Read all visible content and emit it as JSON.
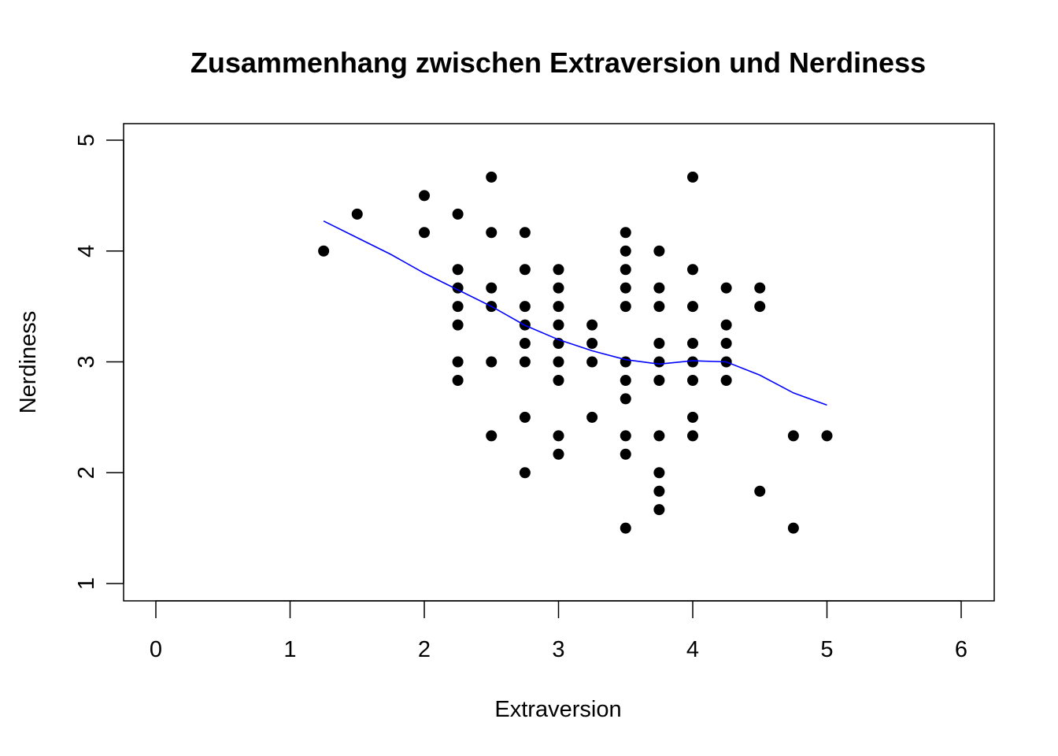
{
  "chart_data": {
    "type": "scatter",
    "title": "Zusammenhang zwischen Extraversion und Nerdiness",
    "xlabel": "Extraversion",
    "ylabel": "Nerdiness",
    "xlim": [
      0,
      6
    ],
    "ylim": [
      1,
      5
    ],
    "x_ticks": [
      0,
      1,
      2,
      3,
      4,
      5,
      6
    ],
    "x_tick_labels": [
      "0",
      "1",
      "2",
      "3",
      "4",
      "5",
      "6"
    ],
    "y_ticks": [
      1,
      2,
      3,
      4,
      5
    ],
    "y_tick_labels": [
      "1",
      "2",
      "3",
      "4",
      "5"
    ],
    "grid": false,
    "series": [
      {
        "name": "points",
        "color": "#000000",
        "points": [
          [
            1.25,
            4.0
          ],
          [
            1.5,
            4.333
          ],
          [
            2.0,
            4.5
          ],
          [
            2.0,
            4.167
          ],
          [
            2.25,
            4.333
          ],
          [
            2.25,
            3.833
          ],
          [
            2.25,
            3.667
          ],
          [
            2.25,
            3.5
          ],
          [
            2.25,
            3.333
          ],
          [
            2.25,
            3.0
          ],
          [
            2.25,
            2.833
          ],
          [
            2.5,
            4.667
          ],
          [
            2.5,
            4.167
          ],
          [
            2.5,
            3.667
          ],
          [
            2.5,
            3.5
          ],
          [
            2.5,
            3.0
          ],
          [
            2.5,
            2.333
          ],
          [
            2.75,
            4.167
          ],
          [
            2.75,
            3.833
          ],
          [
            2.75,
            3.5
          ],
          [
            2.75,
            3.333
          ],
          [
            2.75,
            3.167
          ],
          [
            2.75,
            3.0
          ],
          [
            2.75,
            2.5
          ],
          [
            2.75,
            2.0
          ],
          [
            3.0,
            3.833
          ],
          [
            3.0,
            3.667
          ],
          [
            3.0,
            3.5
          ],
          [
            3.0,
            3.333
          ],
          [
            3.0,
            3.167
          ],
          [
            3.0,
            3.0
          ],
          [
            3.0,
            2.833
          ],
          [
            3.0,
            2.333
          ],
          [
            3.0,
            2.167
          ],
          [
            3.25,
            3.333
          ],
          [
            3.25,
            3.167
          ],
          [
            3.25,
            3.0
          ],
          [
            3.25,
            2.5
          ],
          [
            3.5,
            4.167
          ],
          [
            3.5,
            4.0
          ],
          [
            3.5,
            3.833
          ],
          [
            3.5,
            3.667
          ],
          [
            3.5,
            3.5
          ],
          [
            3.5,
            3.0
          ],
          [
            3.5,
            2.833
          ],
          [
            3.5,
            2.667
          ],
          [
            3.5,
            2.333
          ],
          [
            3.5,
            2.167
          ],
          [
            3.5,
            1.5
          ],
          [
            3.75,
            4.0
          ],
          [
            3.75,
            3.667
          ],
          [
            3.75,
            3.5
          ],
          [
            3.75,
            3.167
          ],
          [
            3.75,
            3.0
          ],
          [
            3.75,
            2.833
          ],
          [
            3.75,
            2.333
          ],
          [
            3.75,
            2.0
          ],
          [
            3.75,
            1.833
          ],
          [
            3.75,
            1.667
          ],
          [
            4.0,
            4.667
          ],
          [
            4.0,
            3.833
          ],
          [
            4.0,
            3.5
          ],
          [
            4.0,
            3.167
          ],
          [
            4.0,
            3.0
          ],
          [
            4.0,
            2.833
          ],
          [
            4.0,
            2.5
          ],
          [
            4.0,
            2.333
          ],
          [
            4.25,
            3.667
          ],
          [
            4.25,
            3.333
          ],
          [
            4.25,
            3.167
          ],
          [
            4.25,
            3.0
          ],
          [
            4.25,
            2.833
          ],
          [
            4.5,
            3.667
          ],
          [
            4.5,
            3.5
          ],
          [
            4.5,
            1.833
          ],
          [
            4.75,
            2.333
          ],
          [
            4.75,
            1.5
          ],
          [
            5.0,
            2.333
          ]
        ]
      },
      {
        "name": "smooth",
        "color": "#0000ff",
        "line": [
          [
            1.25,
            4.27
          ],
          [
            1.5,
            4.12
          ],
          [
            1.75,
            3.97
          ],
          [
            2.0,
            3.8
          ],
          [
            2.25,
            3.65
          ],
          [
            2.5,
            3.5
          ],
          [
            2.75,
            3.33
          ],
          [
            3.0,
            3.2
          ],
          [
            3.25,
            3.1
          ],
          [
            3.5,
            3.02
          ],
          [
            3.75,
            2.98
          ],
          [
            4.0,
            3.01
          ],
          [
            4.25,
            3.0
          ],
          [
            4.5,
            2.88
          ],
          [
            4.75,
            2.72
          ],
          [
            5.0,
            2.61
          ]
        ]
      }
    ]
  }
}
